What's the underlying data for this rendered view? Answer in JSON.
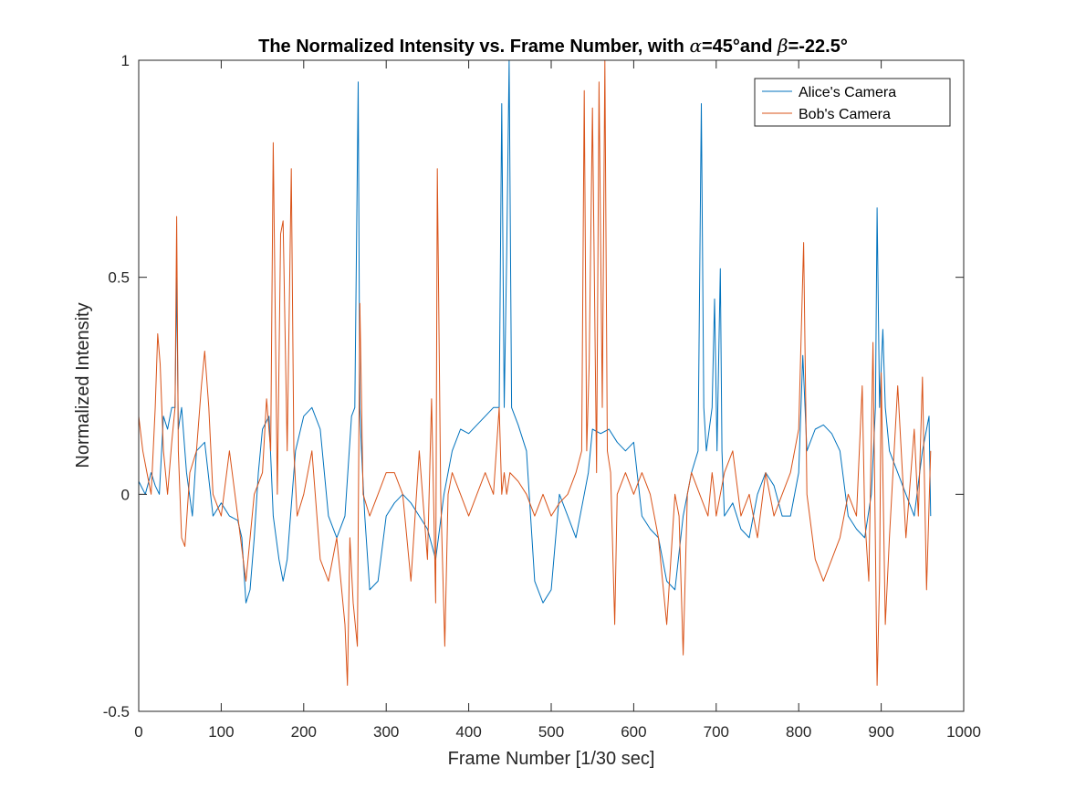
{
  "chart_data": {
    "type": "line",
    "title": {
      "prefix": "The Normalized Intensity vs. Frame Number, with ",
      "alpha_symbol": "α",
      "alpha_value": "=45°and ",
      "beta_symbol": "β",
      "beta_value": "=-22.5°"
    },
    "xlabel": "Frame Number [1/30 sec]",
    "ylabel": "Normalized Intensity",
    "xlim": [
      0,
      1000
    ],
    "ylim": [
      -0.5,
      1
    ],
    "xticks": [
      0,
      100,
      200,
      300,
      400,
      500,
      600,
      700,
      800,
      900,
      1000
    ],
    "yticks": [
      -0.5,
      0,
      0.5,
      1
    ],
    "xtick_labels": [
      "0",
      "100",
      "200",
      "300",
      "400",
      "500",
      "600",
      "700",
      "800",
      "900",
      "1000"
    ],
    "ytick_labels": [
      "-0.5",
      "0",
      "0.5",
      "1"
    ],
    "grid": false,
    "legend_position": "top-right",
    "series": [
      {
        "name": "Alice's Camera",
        "color": "#0072BD",
        "x": [
          0,
          8,
          15,
          20,
          25,
          30,
          35,
          40,
          44,
          46,
          48,
          52,
          58,
          65,
          70,
          80,
          90,
          100,
          110,
          120,
          125,
          130,
          135,
          140,
          145,
          150,
          158,
          163,
          170,
          175,
          180,
          190,
          200,
          210,
          220,
          230,
          240,
          250,
          258,
          262,
          266,
          268,
          270,
          274,
          280,
          290,
          300,
          310,
          320,
          330,
          340,
          350,
          360,
          370,
          380,
          390,
          400,
          410,
          420,
          430,
          437,
          440,
          443,
          446,
          449,
          452,
          456,
          460,
          470,
          480,
          490,
          500,
          510,
          520,
          530,
          540,
          545,
          550,
          560,
          570,
          580,
          590,
          600,
          610,
          620,
          630,
          640,
          650,
          660,
          670,
          678,
          682,
          685,
          688,
          695,
          698,
          701,
          705,
          707,
          710,
          720,
          730,
          740,
          750,
          760,
          770,
          780,
          790,
          800,
          805,
          810,
          820,
          830,
          840,
          850,
          860,
          870,
          880,
          888,
          893,
          895,
          898,
          902,
          905,
          910,
          920,
          930,
          940,
          950,
          955,
          958,
          960
        ],
        "y": [
          0.03,
          0.0,
          0.05,
          0.02,
          0.0,
          0.18,
          0.15,
          0.2,
          0.2,
          0.5,
          0.15,
          0.2,
          0.05,
          -0.05,
          0.1,
          0.12,
          -0.05,
          -0.02,
          -0.05,
          -0.06,
          -0.1,
          -0.25,
          -0.22,
          -0.1,
          0.05,
          0.15,
          0.18,
          -0.05,
          -0.15,
          -0.2,
          -0.15,
          0.1,
          0.18,
          0.2,
          0.15,
          -0.05,
          -0.1,
          -0.05,
          0.18,
          0.2,
          0.95,
          0.2,
          0.1,
          -0.05,
          -0.22,
          -0.2,
          -0.05,
          -0.02,
          0.0,
          -0.02,
          -0.05,
          -0.08,
          -0.15,
          0.0,
          0.1,
          0.15,
          0.14,
          0.16,
          0.18,
          0.2,
          0.2,
          0.9,
          0.2,
          0.55,
          1.0,
          0.2,
          0.18,
          0.16,
          0.1,
          -0.2,
          -0.25,
          -0.22,
          0.0,
          -0.05,
          -0.1,
          0.0,
          0.05,
          0.15,
          0.14,
          0.15,
          0.12,
          0.1,
          0.12,
          -0.05,
          -0.08,
          -0.1,
          -0.2,
          -0.22,
          -0.05,
          0.05,
          0.1,
          0.9,
          0.2,
          0.1,
          0.2,
          0.45,
          0.1,
          0.52,
          0.1,
          -0.05,
          -0.02,
          -0.08,
          -0.1,
          0.0,
          0.05,
          0.02,
          -0.05,
          -0.05,
          0.05,
          0.32,
          0.1,
          0.15,
          0.16,
          0.14,
          0.1,
          -0.05,
          -0.08,
          -0.1,
          0.0,
          0.2,
          0.66,
          0.2,
          0.38,
          0.2,
          0.1,
          0.05,
          0.0,
          -0.05,
          0.1,
          0.15,
          0.18,
          -0.05
        ]
      },
      {
        "name": "Bob's Camera",
        "color": "#D95319",
        "x": [
          0,
          5,
          10,
          15,
          20,
          23,
          26,
          30,
          35,
          40,
          44,
          46,
          48,
          52,
          56,
          62,
          70,
          76,
          80,
          85,
          90,
          100,
          110,
          120,
          130,
          140,
          150,
          155,
          160,
          163,
          168,
          172,
          175,
          180,
          185,
          188,
          192,
          200,
          210,
          220,
          230,
          240,
          250,
          253,
          256,
          260,
          265,
          268,
          272,
          280,
          290,
          300,
          310,
          320,
          330,
          340,
          350,
          355,
          360,
          362,
          366,
          371,
          375,
          380,
          390,
          400,
          410,
          420,
          430,
          437,
          440,
          443,
          446,
          450,
          460,
          470,
          480,
          490,
          500,
          510,
          520,
          530,
          537,
          540,
          543,
          546,
          550,
          555,
          558,
          562,
          565,
          568,
          572,
          577,
          580,
          590,
          600,
          610,
          620,
          630,
          640,
          650,
          655,
          660,
          665,
          670,
          680,
          690,
          695,
          698,
          700,
          705,
          710,
          720,
          730,
          740,
          750,
          760,
          770,
          780,
          790,
          800,
          806,
          810,
          820,
          830,
          840,
          850,
          860,
          870,
          877,
          880,
          885,
          890,
          895,
          898,
          900,
          905,
          910,
          920,
          930,
          940,
          945,
          950,
          955,
          960
        ],
        "y": [
          0.18,
          0.1,
          0.05,
          0.0,
          0.2,
          0.37,
          0.3,
          0.1,
          0.0,
          0.12,
          0.2,
          0.64,
          0.1,
          -0.1,
          -0.12,
          0.05,
          0.1,
          0.25,
          0.33,
          0.2,
          0.0,
          -0.05,
          0.1,
          -0.05,
          -0.2,
          0.0,
          0.05,
          0.22,
          0.1,
          0.81,
          0.0,
          0.6,
          0.63,
          0.1,
          0.75,
          0.1,
          -0.05,
          0.0,
          0.1,
          -0.15,
          -0.2,
          -0.1,
          -0.3,
          -0.44,
          -0.1,
          -0.25,
          -0.35,
          0.44,
          0.0,
          -0.05,
          0.0,
          0.05,
          0.05,
          0.0,
          -0.2,
          0.1,
          -0.15,
          0.22,
          -0.25,
          0.75,
          0.0,
          -0.35,
          0.0,
          0.05,
          0.0,
          -0.05,
          0.0,
          0.05,
          0.0,
          0.2,
          0.0,
          0.05,
          0.0,
          0.05,
          0.03,
          0.0,
          -0.05,
          0.0,
          -0.05,
          -0.02,
          0.0,
          0.05,
          0.1,
          0.93,
          0.1,
          0.3,
          0.89,
          0.05,
          0.95,
          0.2,
          1.0,
          0.1,
          0.05,
          -0.3,
          0.0,
          0.05,
          0.0,
          0.05,
          0.0,
          -0.1,
          -0.3,
          0.0,
          -0.05,
          -0.37,
          0.0,
          0.05,
          0.0,
          -0.05,
          0.05,
          0.0,
          -0.05,
          0.0,
          0.05,
          0.1,
          -0.05,
          0.0,
          -0.1,
          0.05,
          -0.05,
          0.0,
          0.05,
          0.15,
          0.58,
          0.0,
          -0.15,
          -0.2,
          -0.15,
          -0.1,
          0.0,
          -0.05,
          0.25,
          -0.05,
          -0.2,
          0.35,
          -0.44,
          -0.2,
          0.28,
          -0.3,
          -0.1,
          0.25,
          -0.1,
          0.15,
          -0.05,
          0.27,
          -0.22,
          0.1
        ]
      }
    ]
  }
}
